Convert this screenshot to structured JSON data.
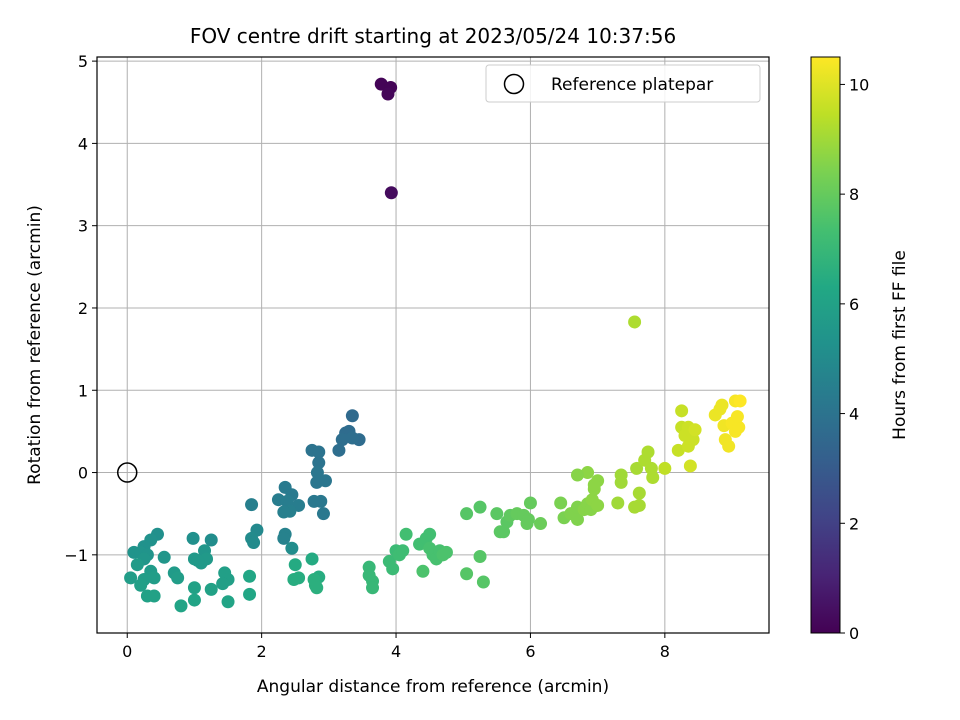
{
  "chart_data": {
    "type": "scatter",
    "title": "FOV centre drift starting at 2023/05/24 10:37:56",
    "xlabel": "Angular distance from reference (arcmin)",
    "ylabel": "Rotation from reference (arcmin)",
    "xlim": [
      -0.45,
      9.55
    ],
    "ylim": [
      -1.95,
      5.05
    ],
    "xticks": [
      0,
      2,
      4,
      6,
      8
    ],
    "yticks": [
      -1,
      0,
      1,
      2,
      3,
      4,
      5
    ],
    "xtick_labels": [
      "0",
      "2",
      "4",
      "6",
      "8"
    ],
    "ytick_labels": [
      "−1",
      "0",
      "1",
      "2",
      "3",
      "4",
      "5"
    ],
    "grid": true,
    "legend": {
      "placement": "top-right",
      "entries": [
        "Reference platepar"
      ]
    },
    "reference_point": {
      "x": 0,
      "y": 0,
      "label": "Reference platepar"
    },
    "colorbar": {
      "label": "Hours from first FF file",
      "colormap": "viridis",
      "range": [
        0,
        10.5
      ],
      "ticks": [
        0,
        2,
        4,
        6,
        8,
        10
      ],
      "tick_labels": [
        "0",
        "2",
        "4",
        "6",
        "8",
        "10"
      ]
    },
    "points": [
      {
        "x": 3.78,
        "y": 4.72,
        "c": 0.1
      },
      {
        "x": 3.92,
        "y": 4.68,
        "c": 0.1
      },
      {
        "x": 3.88,
        "y": 4.6,
        "c": 0.15
      },
      {
        "x": 3.93,
        "y": 3.4,
        "c": 0.3
      },
      {
        "x": 3.35,
        "y": 0.69,
        "c": 3.6
      },
      {
        "x": 3.3,
        "y": 0.5,
        "c": 3.7
      },
      {
        "x": 3.25,
        "y": 0.48,
        "c": 3.7
      },
      {
        "x": 3.2,
        "y": 0.4,
        "c": 3.8
      },
      {
        "x": 3.45,
        "y": 0.4,
        "c": 3.7
      },
      {
        "x": 3.15,
        "y": 0.27,
        "c": 3.8
      },
      {
        "x": 3.35,
        "y": 0.42,
        "c": 3.8
      },
      {
        "x": 2.75,
        "y": 0.27,
        "c": 4.0
      },
      {
        "x": 2.85,
        "y": 0.25,
        "c": 4.0
      },
      {
        "x": 2.85,
        "y": 0.12,
        "c": 4.0
      },
      {
        "x": 2.83,
        "y": 0.0,
        "c": 4.1
      },
      {
        "x": 2.82,
        "y": -0.12,
        "c": 4.1
      },
      {
        "x": 2.95,
        "y": -0.1,
        "c": 4.1
      },
      {
        "x": 2.78,
        "y": -0.35,
        "c": 4.2
      },
      {
        "x": 2.88,
        "y": -0.35,
        "c": 4.2
      },
      {
        "x": 2.92,
        "y": -0.5,
        "c": 4.2
      },
      {
        "x": 2.35,
        "y": -0.18,
        "c": 4.3
      },
      {
        "x": 2.45,
        "y": -0.27,
        "c": 4.3
      },
      {
        "x": 2.25,
        "y": -0.33,
        "c": 4.4
      },
      {
        "x": 2.38,
        "y": -0.35,
        "c": 4.4
      },
      {
        "x": 2.55,
        "y": -0.4,
        "c": 4.4
      },
      {
        "x": 2.42,
        "y": -0.47,
        "c": 4.5
      },
      {
        "x": 2.33,
        "y": -0.48,
        "c": 4.5
      },
      {
        "x": 1.85,
        "y": -0.39,
        "c": 4.5
      },
      {
        "x": 2.35,
        "y": -0.75,
        "c": 4.6
      },
      {
        "x": 2.33,
        "y": -0.8,
        "c": 4.6
      },
      {
        "x": 1.93,
        "y": -0.7,
        "c": 4.9
      },
      {
        "x": 1.85,
        "y": -0.8,
        "c": 5.0
      },
      {
        "x": 1.88,
        "y": -0.85,
        "c": 5.0
      },
      {
        "x": 2.45,
        "y": -0.92,
        "c": 5.1
      },
      {
        "x": 1.25,
        "y": -0.82,
        "c": 5.1
      },
      {
        "x": 0.98,
        "y": -0.8,
        "c": 5.2
      },
      {
        "x": 0.45,
        "y": -0.75,
        "c": 5.2
      },
      {
        "x": 0.35,
        "y": -0.82,
        "c": 5.3
      },
      {
        "x": 0.25,
        "y": -0.9,
        "c": 5.3
      },
      {
        "x": 0.1,
        "y": -0.97,
        "c": 5.4
      },
      {
        "x": 0.2,
        "y": -0.97,
        "c": 5.4
      },
      {
        "x": 0.3,
        "y": -1.0,
        "c": 5.4
      },
      {
        "x": 0.55,
        "y": -1.03,
        "c": 5.5
      },
      {
        "x": 0.25,
        "y": -1.05,
        "c": 5.5
      },
      {
        "x": 1.15,
        "y": -0.95,
        "c": 5.5
      },
      {
        "x": 1.0,
        "y": -1.05,
        "c": 5.6
      },
      {
        "x": 1.1,
        "y": -1.1,
        "c": 5.6
      },
      {
        "x": 1.18,
        "y": -1.05,
        "c": 5.6
      },
      {
        "x": 1.05,
        "y": -1.07,
        "c": 5.6
      },
      {
        "x": 0.15,
        "y": -1.12,
        "c": 5.7
      },
      {
        "x": 0.35,
        "y": -1.2,
        "c": 5.7
      },
      {
        "x": 0.7,
        "y": -1.22,
        "c": 5.7
      },
      {
        "x": 0.75,
        "y": -1.28,
        "c": 5.8
      },
      {
        "x": 0.05,
        "y": -1.28,
        "c": 5.8
      },
      {
        "x": 0.25,
        "y": -1.3,
        "c": 5.8
      },
      {
        "x": 0.4,
        "y": -1.28,
        "c": 5.8
      },
      {
        "x": 1.45,
        "y": -1.22,
        "c": 5.9
      },
      {
        "x": 1.5,
        "y": -1.3,
        "c": 5.9
      },
      {
        "x": 1.42,
        "y": -1.35,
        "c": 5.9
      },
      {
        "x": 0.2,
        "y": -1.37,
        "c": 5.9
      },
      {
        "x": 1.0,
        "y": -1.4,
        "c": 6.0
      },
      {
        "x": 1.25,
        "y": -1.42,
        "c": 6.0
      },
      {
        "x": 0.3,
        "y": -1.5,
        "c": 6.0
      },
      {
        "x": 0.4,
        "y": -1.5,
        "c": 6.0
      },
      {
        "x": 1.0,
        "y": -1.55,
        "c": 6.1
      },
      {
        "x": 1.5,
        "y": -1.57,
        "c": 6.1
      },
      {
        "x": 0.8,
        "y": -1.62,
        "c": 6.1
      },
      {
        "x": 1.82,
        "y": -1.26,
        "c": 6.2
      },
      {
        "x": 1.82,
        "y": -1.48,
        "c": 6.2
      },
      {
        "x": 2.75,
        "y": -1.05,
        "c": 6.4
      },
      {
        "x": 2.5,
        "y": -1.12,
        "c": 6.4
      },
      {
        "x": 2.85,
        "y": -1.27,
        "c": 6.5
      },
      {
        "x": 2.55,
        "y": -1.28,
        "c": 6.5
      },
      {
        "x": 2.48,
        "y": -1.3,
        "c": 6.5
      },
      {
        "x": 2.78,
        "y": -1.3,
        "c": 6.6
      },
      {
        "x": 2.8,
        "y": -1.37,
        "c": 6.6
      },
      {
        "x": 2.82,
        "y": -1.4,
        "c": 6.6
      },
      {
        "x": 3.6,
        "y": -1.15,
        "c": 7.0
      },
      {
        "x": 3.6,
        "y": -1.25,
        "c": 7.0
      },
      {
        "x": 3.65,
        "y": -1.32,
        "c": 7.0
      },
      {
        "x": 3.65,
        "y": -1.4,
        "c": 7.0
      },
      {
        "x": 3.9,
        "y": -1.08,
        "c": 7.1
      },
      {
        "x": 3.95,
        "y": -1.17,
        "c": 7.1
      },
      {
        "x": 4.0,
        "y": -0.95,
        "c": 7.1
      },
      {
        "x": 4.05,
        "y": -1.0,
        "c": 7.2
      },
      {
        "x": 4.1,
        "y": -0.95,
        "c": 7.2
      },
      {
        "x": 4.15,
        "y": -0.75,
        "c": 7.3
      },
      {
        "x": 4.35,
        "y": -0.87,
        "c": 7.3
      },
      {
        "x": 4.45,
        "y": -0.8,
        "c": 7.3
      },
      {
        "x": 4.5,
        "y": -0.75,
        "c": 7.3
      },
      {
        "x": 4.5,
        "y": -0.92,
        "c": 7.4
      },
      {
        "x": 4.55,
        "y": -1.0,
        "c": 7.4
      },
      {
        "x": 4.6,
        "y": -1.05,
        "c": 7.4
      },
      {
        "x": 4.65,
        "y": -0.95,
        "c": 7.4
      },
      {
        "x": 4.7,
        "y": -1.0,
        "c": 7.5
      },
      {
        "x": 4.75,
        "y": -0.97,
        "c": 7.5
      },
      {
        "x": 4.4,
        "y": -1.2,
        "c": 7.5
      },
      {
        "x": 5.05,
        "y": -0.5,
        "c": 7.7
      },
      {
        "x": 5.25,
        "y": -0.42,
        "c": 7.7
      },
      {
        "x": 5.25,
        "y": -1.02,
        "c": 7.7
      },
      {
        "x": 5.05,
        "y": -1.23,
        "c": 7.7
      },
      {
        "x": 5.3,
        "y": -1.33,
        "c": 7.7
      },
      {
        "x": 5.5,
        "y": -0.5,
        "c": 7.8
      },
      {
        "x": 5.55,
        "y": -0.72,
        "c": 7.8
      },
      {
        "x": 5.6,
        "y": -0.72,
        "c": 7.8
      },
      {
        "x": 5.65,
        "y": -0.6,
        "c": 7.8
      },
      {
        "x": 5.7,
        "y": -0.52,
        "c": 7.9
      },
      {
        "x": 5.8,
        "y": -0.5,
        "c": 8.0
      },
      {
        "x": 5.9,
        "y": -0.52,
        "c": 8.0
      },
      {
        "x": 5.95,
        "y": -0.62,
        "c": 8.0
      },
      {
        "x": 6.0,
        "y": -0.37,
        "c": 8.0
      },
      {
        "x": 6.15,
        "y": -0.62,
        "c": 8.1
      },
      {
        "x": 5.97,
        "y": -0.57,
        "c": 8.0
      },
      {
        "x": 6.45,
        "y": -0.37,
        "c": 8.4
      },
      {
        "x": 6.5,
        "y": -0.55,
        "c": 8.4
      },
      {
        "x": 6.6,
        "y": -0.5,
        "c": 8.5
      },
      {
        "x": 6.7,
        "y": -0.57,
        "c": 8.5
      },
      {
        "x": 6.7,
        "y": -0.42,
        "c": 8.5
      },
      {
        "x": 6.8,
        "y": -0.45,
        "c": 8.6
      },
      {
        "x": 6.85,
        "y": -0.38,
        "c": 8.6
      },
      {
        "x": 6.9,
        "y": -0.45,
        "c": 8.6
      },
      {
        "x": 6.92,
        "y": -0.33,
        "c": 8.7
      },
      {
        "x": 6.95,
        "y": -0.2,
        "c": 8.7
      },
      {
        "x": 7.0,
        "y": -0.4,
        "c": 8.7
      },
      {
        "x": 7.0,
        "y": -0.1,
        "c": 8.7
      },
      {
        "x": 6.85,
        "y": 0.0,
        "c": 8.7
      },
      {
        "x": 6.7,
        "y": -0.03,
        "c": 8.6
      },
      {
        "x": 6.95,
        "y": -0.15,
        "c": 8.7
      },
      {
        "x": 7.3,
        "y": -0.37,
        "c": 9.0
      },
      {
        "x": 7.35,
        "y": -0.03,
        "c": 9.0
      },
      {
        "x": 7.35,
        "y": -0.12,
        "c": 9.0
      },
      {
        "x": 7.55,
        "y": -0.42,
        "c": 9.1
      },
      {
        "x": 7.62,
        "y": -0.4,
        "c": 9.1
      },
      {
        "x": 7.62,
        "y": -0.25,
        "c": 9.1
      },
      {
        "x": 7.58,
        "y": 0.05,
        "c": 9.1
      },
      {
        "x": 7.7,
        "y": 0.15,
        "c": 9.2
      },
      {
        "x": 7.75,
        "y": 0.25,
        "c": 9.2
      },
      {
        "x": 7.8,
        "y": 0.05,
        "c": 9.2
      },
      {
        "x": 7.82,
        "y": -0.06,
        "c": 9.2
      },
      {
        "x": 7.55,
        "y": 1.83,
        "c": 9.2
      },
      {
        "x": 8.0,
        "y": 0.05,
        "c": 9.5
      },
      {
        "x": 8.2,
        "y": 0.27,
        "c": 9.6
      },
      {
        "x": 8.25,
        "y": 0.75,
        "c": 9.6
      },
      {
        "x": 8.25,
        "y": 0.55,
        "c": 9.6
      },
      {
        "x": 8.3,
        "y": 0.45,
        "c": 9.7
      },
      {
        "x": 8.35,
        "y": 0.55,
        "c": 9.7
      },
      {
        "x": 8.35,
        "y": 0.32,
        "c": 9.7
      },
      {
        "x": 8.4,
        "y": 0.5,
        "c": 9.7
      },
      {
        "x": 8.42,
        "y": 0.4,
        "c": 9.7
      },
      {
        "x": 8.45,
        "y": 0.52,
        "c": 9.8
      },
      {
        "x": 8.38,
        "y": 0.08,
        "c": 9.8
      },
      {
        "x": 8.75,
        "y": 0.7,
        "c": 10.2
      },
      {
        "x": 8.82,
        "y": 0.77,
        "c": 10.2
      },
      {
        "x": 8.85,
        "y": 0.82,
        "c": 10.2
      },
      {
        "x": 8.88,
        "y": 0.57,
        "c": 10.3
      },
      {
        "x": 8.9,
        "y": 0.4,
        "c": 10.3
      },
      {
        "x": 8.95,
        "y": 0.32,
        "c": 10.3
      },
      {
        "x": 9.0,
        "y": 0.6,
        "c": 10.4
      },
      {
        "x": 9.05,
        "y": 0.5,
        "c": 10.4
      },
      {
        "x": 9.05,
        "y": 0.87,
        "c": 10.4
      },
      {
        "x": 9.1,
        "y": 0.55,
        "c": 10.4
      },
      {
        "x": 9.12,
        "y": 0.87,
        "c": 10.5
      },
      {
        "x": 9.08,
        "y": 0.68,
        "c": 10.4
      }
    ]
  }
}
